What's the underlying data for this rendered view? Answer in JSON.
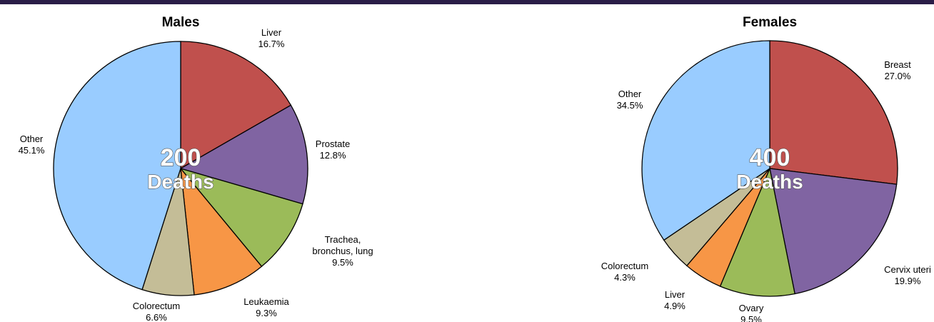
{
  "chart_data": [
    {
      "type": "pie",
      "title": "Males",
      "total_number": "200",
      "total_unit": "Deaths",
      "slices": [
        {
          "label": [
            "Liver"
          ],
          "value": 16.7,
          "value_text": "16.7%",
          "color": "#c0504d"
        },
        {
          "label": [
            "Prostate"
          ],
          "value": 12.8,
          "value_text": "12.8%",
          "color": "#8064a2"
        },
        {
          "label": [
            "Trachea,",
            "bronchus, lung"
          ],
          "value": 9.5,
          "value_text": "9.5%",
          "color": "#9bbb59"
        },
        {
          "label": [
            "Leukaemia"
          ],
          "value": 9.3,
          "value_text": "9.3%",
          "color": "#f79646"
        },
        {
          "label": [
            "Colorectum"
          ],
          "value": 6.6,
          "value_text": "6.6%",
          "color": "#c4bd97"
        },
        {
          "label": [
            "Other"
          ],
          "value": 45.1,
          "value_text": "45.1%",
          "color": "#99ccff"
        }
      ]
    },
    {
      "type": "pie",
      "title": "Females",
      "total_number": "400",
      "total_unit": "Deaths",
      "slices": [
        {
          "label": [
            "Breast"
          ],
          "value": 27.0,
          "value_text": "27.0%",
          "color": "#c0504d"
        },
        {
          "label": [
            "Cervix uteri"
          ],
          "value": 19.9,
          "value_text": "19.9%",
          "color": "#8064a2"
        },
        {
          "label": [
            "Ovary"
          ],
          "value": 9.5,
          "value_text": "9.5%",
          "color": "#9bbb59"
        },
        {
          "label": [
            "Liver"
          ],
          "value": 4.9,
          "value_text": "4.9%",
          "color": "#f79646"
        },
        {
          "label": [
            "Colorectum"
          ],
          "value": 4.3,
          "value_text": "4.3%",
          "color": "#c4bd97"
        },
        {
          "label": [
            "Other"
          ],
          "value": 34.5,
          "value_text": "34.5%",
          "color": "#99ccff"
        }
      ]
    }
  ]
}
